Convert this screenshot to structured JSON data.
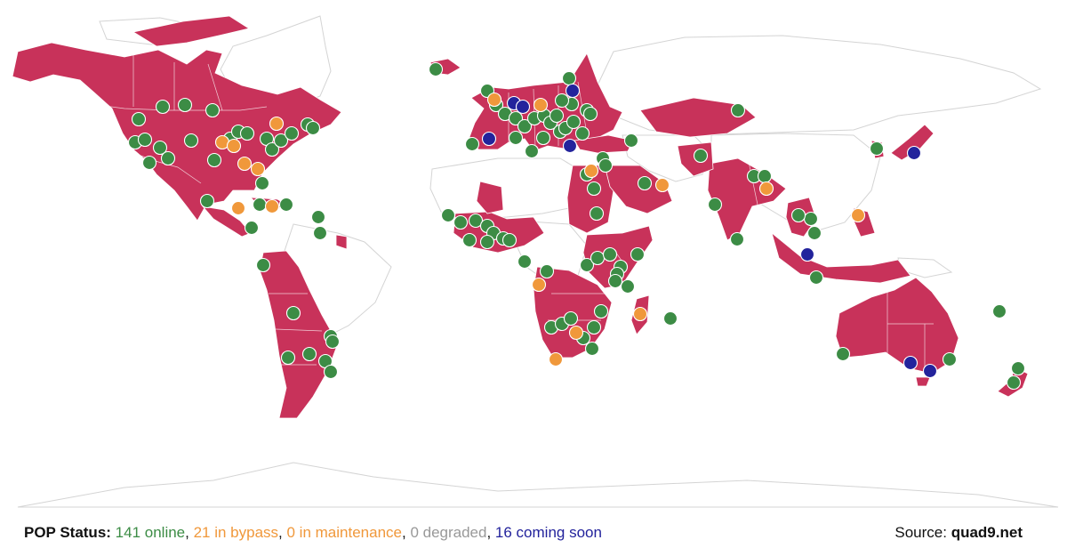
{
  "colors": {
    "covered_country": "#c8325a",
    "online": "#3c8c45",
    "bypass": "#f0983b",
    "maintenance": "#f0983b",
    "degraded": "#999999",
    "coming_soon": "#23239c"
  },
  "status": {
    "label": "POP Status:",
    "online_text": "141 online",
    "bypass_text": "21 in bypass",
    "maintenance_text": "0 in maintenance",
    "degraded_text": "0 degraded",
    "coming_soon_text": "16 coming soon",
    "separator": ", ",
    "counts": {
      "online": 141,
      "bypass": 21,
      "maintenance": 0,
      "degraded": 0,
      "coming_soon": 16
    }
  },
  "source": {
    "label": "Source:",
    "site": "quad9.net"
  }
}
